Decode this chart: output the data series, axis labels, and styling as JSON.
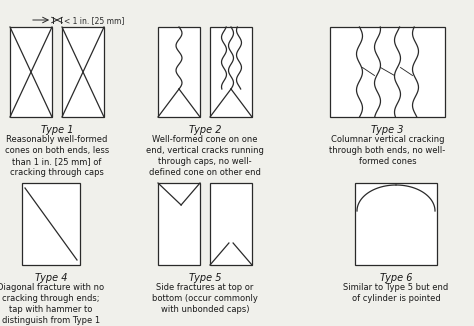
{
  "bg_color": "#f0f0eb",
  "line_color": "#2a2a2a",
  "text_color": "#1a1a1a",
  "title_fontsize": 7.0,
  "desc_fontsize": 6.0,
  "types": [
    {
      "id": 1,
      "label": "Type 1",
      "desc": "Reasonably well-formed\ncones on both ends, less\nthan 1 in. [25 mm] of\ncracking through caps"
    },
    {
      "id": 2,
      "label": "Type 2",
      "desc": "Well-formed cone on one\nend, vertical cracks running\nthrough caps, no well-\ndefined cone on other end"
    },
    {
      "id": 3,
      "label": "Type 3",
      "desc": "Columnar vertical cracking\nthrough both ends, no well-\nformed cones"
    },
    {
      "id": 4,
      "label": "Type 4",
      "desc": "Diagonal fracture with no\ncracking through ends;\ntap with hammer to\ndistinguish from Type 1"
    },
    {
      "id": 5,
      "label": "Type 5",
      "desc": "Side fractures at top or\nbottom (occur commonly\nwith unbonded caps)"
    },
    {
      "id": 6,
      "label": "Type 6",
      "desc": "Similar to Type 5 but end\nof cylinder is pointed"
    }
  ]
}
